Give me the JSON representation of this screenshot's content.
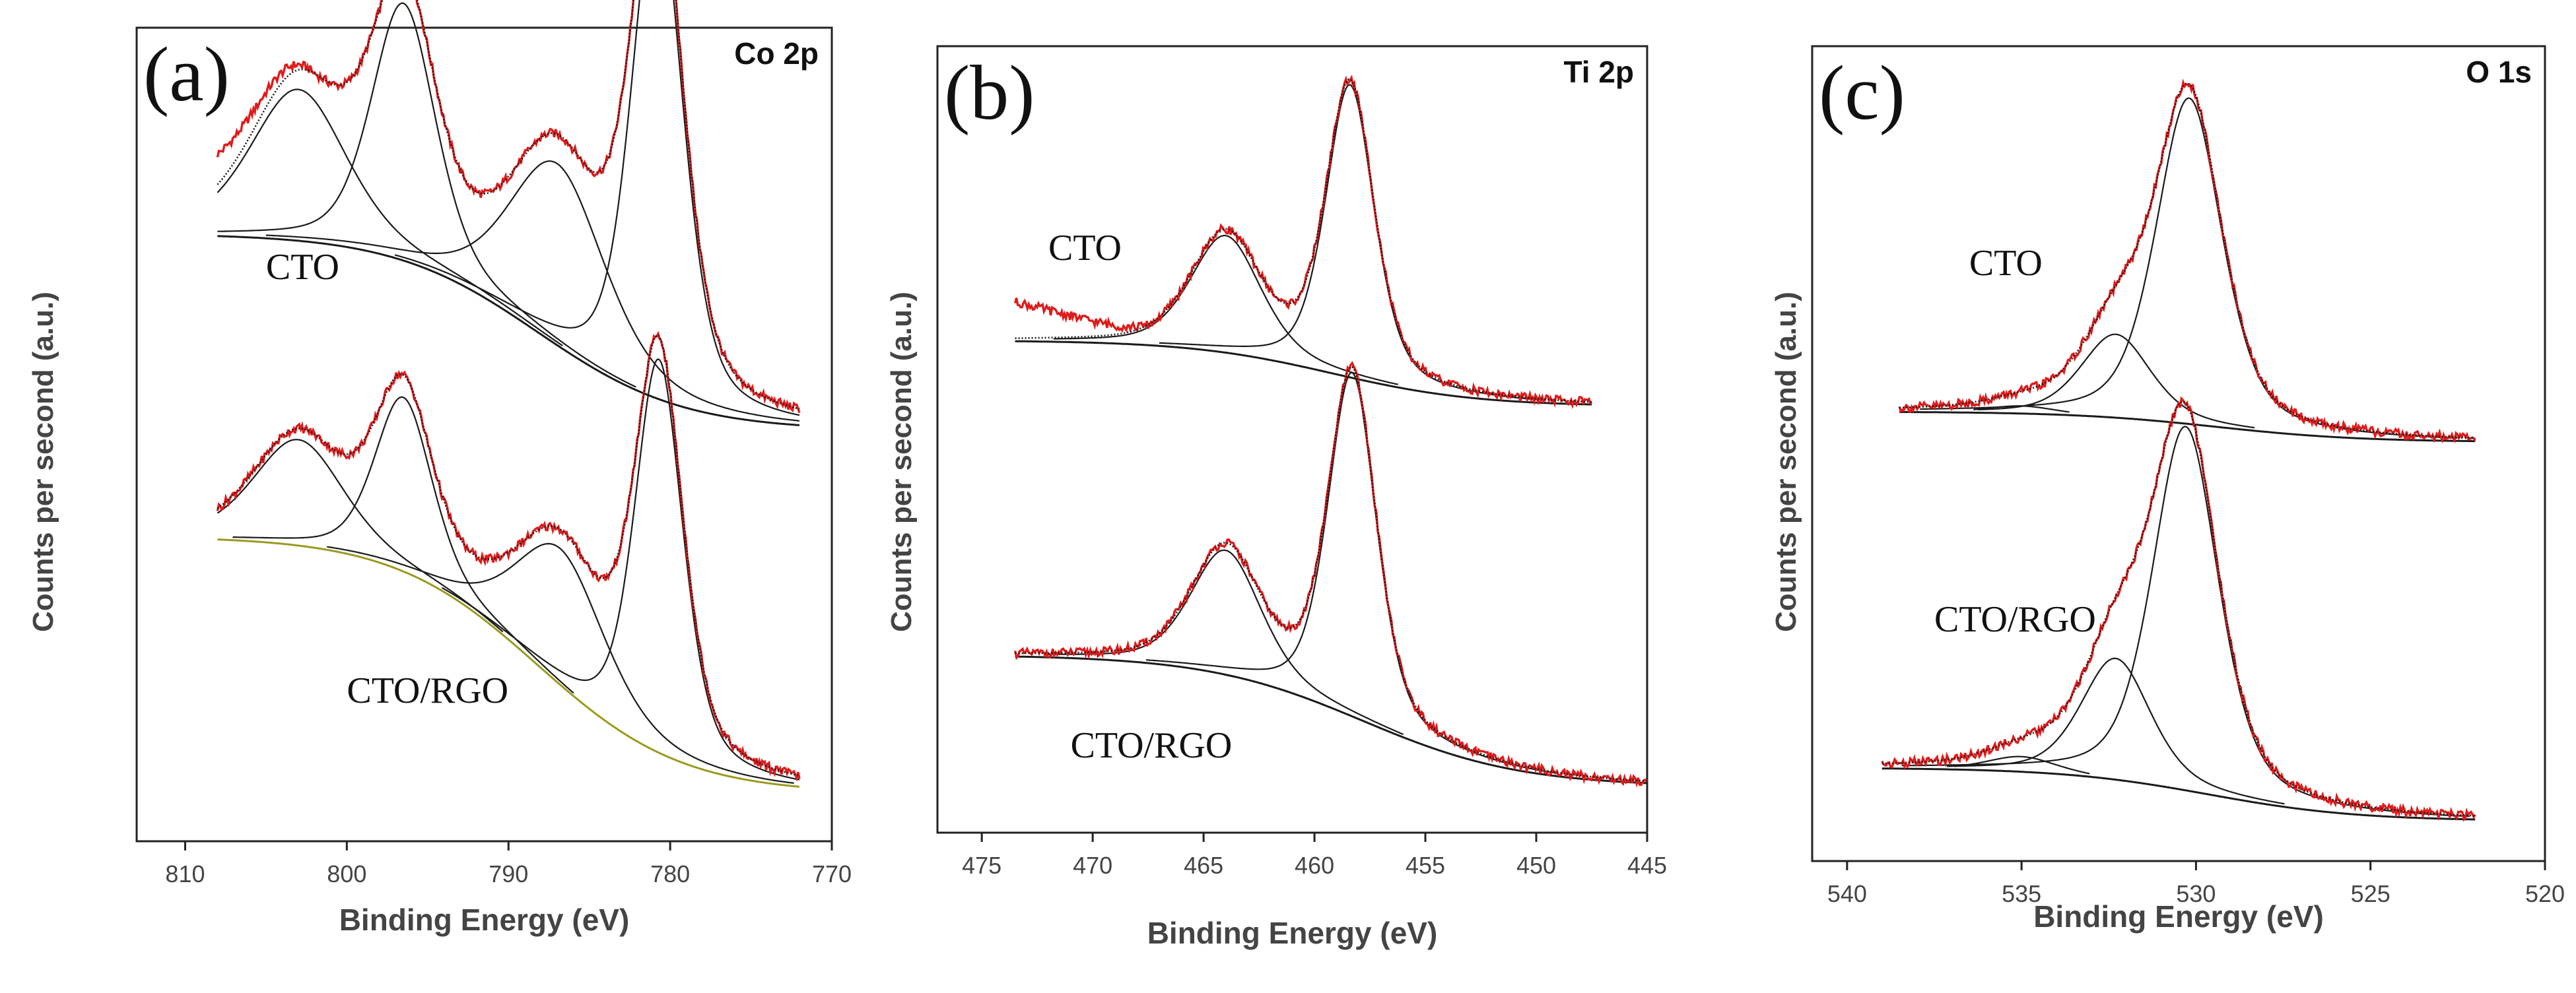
{
  "colors": {
    "axis": "#222222",
    "experimental": "#e01b1b",
    "fit": "#1a1a1a",
    "background_cto_rgo_co": "#9a9a1e"
  },
  "chart_data": [
    {
      "type": "line",
      "panel": "(a)",
      "spectrum": "Co 2p",
      "xlabel": "Binding Energy (eV)",
      "ylabel": "Counts per second (a.u.)",
      "xlim": [
        813,
        770
      ],
      "x_reversed": true,
      "xticks": [
        810,
        800,
        790,
        780,
        770
      ],
      "xtick_labels": [
        "810",
        "800",
        "790",
        "780",
        "770"
      ],
      "ylim": [
        0,
        1
      ],
      "yticks": [],
      "series_labels": [
        {
          "text": "CTO",
          "x": 805,
          "y": 0.7
        },
        {
          "text": "CTO/RGO",
          "x": 800,
          "y": 0.14
        }
      ],
      "groups": [
        {
          "name": "CTO",
          "offset": 0.5,
          "range": [
            808,
            772
          ],
          "background": {
            "type": "shirley",
            "start": 0.26,
            "end": 0.0,
            "tail_at": 774,
            "tail_to": 0.0
          },
          "peaks": [
            {
              "center": 803.0,
              "amp": 0.2,
              "width": 3.0
            },
            {
              "center": 796.5,
              "amp": 0.34,
              "width": 2.0
            },
            {
              "center": 787.0,
              "amp": 0.24,
              "width": 3.0
            },
            {
              "center": 780.8,
              "amp": 0.67,
              "width": 1.6
            }
          ],
          "exp_extra": {
            "x0": 808,
            "extra": 0.04
          }
        },
        {
          "name": "CTO/RGO",
          "offset": 0.0,
          "range": [
            808,
            772
          ],
          "background": {
            "type": "shirley",
            "start": 0.36,
            "end": 0.02,
            "tail_at": 774,
            "tail_to": 0.0
          },
          "peaks": [
            {
              "center": 803.0,
              "amp": 0.14,
              "width": 2.8
            },
            {
              "center": 796.5,
              "amp": 0.23,
              "width": 1.8
            },
            {
              "center": 786.8,
              "amp": 0.18,
              "width": 2.8
            },
            {
              "center": 780.7,
              "amp": 0.52,
              "width": 1.5
            }
          ],
          "exp_extra": {
            "x0": 808,
            "extra": 0.0
          }
        }
      ]
    },
    {
      "type": "line",
      "panel": "(b)",
      "spectrum": "Ti 2p",
      "xlabel": "Binding Energy (eV)",
      "ylabel": "Counts per second (a.u.)",
      "xlim": [
        477,
        445
      ],
      "x_reversed": true,
      "xticks": [
        475,
        470,
        465,
        460,
        455,
        450,
        445
      ],
      "xtick_labels": [
        "475",
        "470",
        "465",
        "460",
        "455",
        "450",
        "445"
      ],
      "ylim": [
        0,
        1
      ],
      "yticks": [],
      "series_labels": [
        {
          "text": "CTO",
          "x": 472,
          "y": 0.74
        },
        {
          "text": "CTO/RGO",
          "x": 471,
          "y": 0.06
        }
      ],
      "groups": [
        {
          "name": "CTO",
          "offset": 0.5,
          "range": [
            473.5,
            447.5
          ],
          "background": {
            "type": "shirley",
            "start": 0.13,
            "end": 0.04,
            "tail_at": 455,
            "tail_to": 0.04
          },
          "peaks": [
            {
              "center": 464.0,
              "amp": 0.16,
              "width": 1.6
            },
            {
              "center": 458.4,
              "amp": 0.4,
              "width": 1.1
            }
          ],
          "exp_extra": {
            "x0": 473.5,
            "extra": 0.05
          }
        },
        {
          "name": "CTO/RGO",
          "offset": 0.0,
          "range": [
            473.5,
            445
          ],
          "background": {
            "type": "shirley",
            "start": 0.2,
            "end": 0.02,
            "tail_at": 455,
            "tail_to": 0.02
          },
          "peaks": [
            {
              "center": 464.0,
              "amp": 0.17,
              "width": 1.6
            },
            {
              "center": 458.3,
              "amp": 0.47,
              "width": 1.1
            }
          ],
          "exp_extra": {
            "x0": 473.5,
            "extra": 0.0
          }
        }
      ]
    },
    {
      "type": "line",
      "panel": "(c)",
      "spectrum": "O 1s",
      "xlabel": "Binding Energy (eV)",
      "ylabel": "Counts per second (a.u.)",
      "xlim": [
        541,
        520
      ],
      "x_reversed": true,
      "xticks": [
        540,
        535,
        530,
        525,
        520
      ],
      "xtick_labels": [
        "540",
        "535",
        "530",
        "525",
        "520"
      ],
      "ylim": [
        0,
        1
      ],
      "yticks": [],
      "series_labels": [
        {
          "text": "CTO",
          "x": 536.5,
          "y": 0.73
        },
        {
          "text": "CTO/RGO",
          "x": 537.5,
          "y": 0.26
        }
      ],
      "groups": [
        {
          "name": "CTO",
          "offset": 0.5,
          "range": [
            538.5,
            522
          ],
          "background": {
            "type": "shirley",
            "start": 0.05,
            "end": 0.01,
            "tail_at": 525,
            "tail_to": 0.02
          },
          "peaks": [
            {
              "center": 535.0,
              "amp": 0.01,
              "width": 1.0
            },
            {
              "center": 532.3,
              "amp": 0.11,
              "width": 1.0
            },
            {
              "center": 530.2,
              "amp": 0.43,
              "width": 0.95
            }
          ],
          "exp_extra": {
            "x0": 538.5,
            "extra": 0.0
          }
        },
        {
          "name": "CTO/RGO",
          "offset": 0.0,
          "range": [
            539,
            522
          ],
          "background": {
            "type": "shirley",
            "start": 0.08,
            "end": 0.01,
            "tail_at": 525,
            "tail_to": 0.01
          },
          "peaks": [
            {
              "center": 535.0,
              "amp": 0.02,
              "width": 1.0
            },
            {
              "center": 532.3,
              "amp": 0.16,
              "width": 1.0
            },
            {
              "center": 530.3,
              "amp": 0.48,
              "width": 0.95
            }
          ],
          "exp_extra": {
            "x0": 539,
            "extra": 0.0
          }
        }
      ]
    }
  ]
}
